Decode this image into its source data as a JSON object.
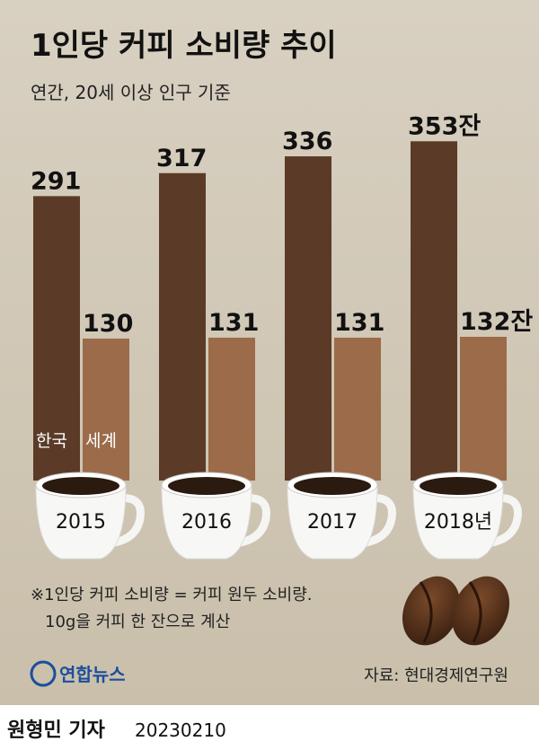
{
  "chart_data": {
    "type": "bar",
    "title": "1인당 커피 소비량 추이",
    "subtitle": "연간, 20세 이상 인구 기준",
    "categories": [
      "2015",
      "2016",
      "2017",
      "2018년"
    ],
    "series": [
      {
        "name": "한국",
        "color": "#5b3b27",
        "values": [
          291,
          317,
          336,
          353
        ],
        "value_labels": [
          "291",
          "317",
          "336",
          "353잔"
        ]
      },
      {
        "name": "세계",
        "color": "#9b6b4a",
        "values": [
          130,
          131,
          131,
          132
        ],
        "value_labels": [
          "130",
          "131",
          "131",
          "132잔"
        ]
      }
    ],
    "notes": [
      "※1인당 커피 소비량 = 커피 원두 소비량.",
      "10g을 커피 한 잔으로 계산"
    ],
    "source": "자료: 현대경제연구원",
    "logo": "연합뉴스",
    "byline": "원형민 기자",
    "date": "20230210"
  }
}
